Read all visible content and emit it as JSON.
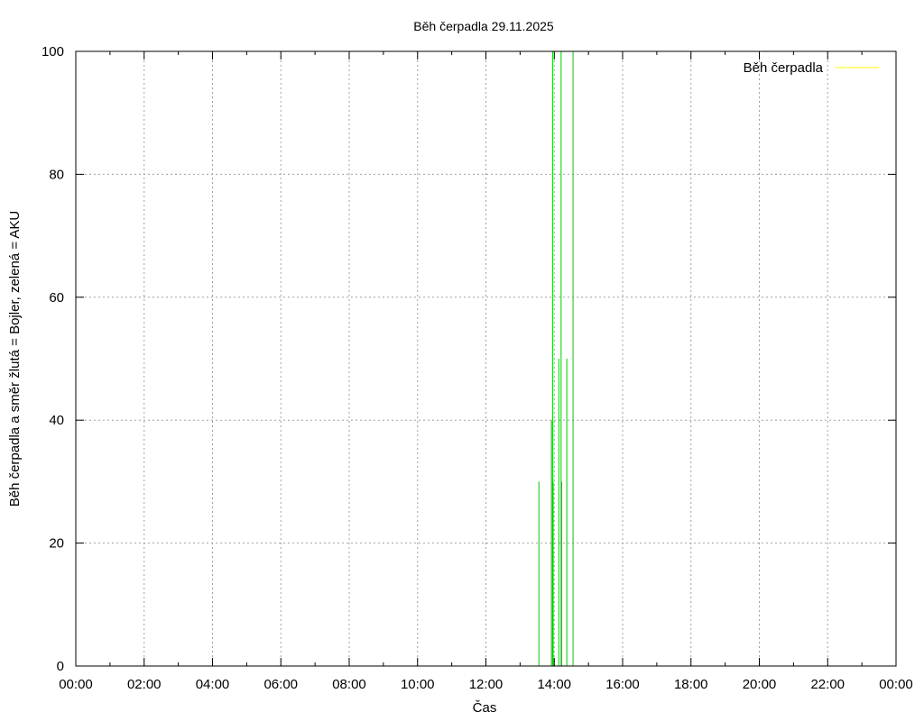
{
  "chart_data": {
    "type": "line",
    "title": "Běh čerpadla 29.11.2025",
    "xlabel": "Čas",
    "ylabel": "Běh čerpadla a směr žlutá = Bojler, zelená = AKU",
    "xlim": [
      0,
      24
    ],
    "ylim": [
      0,
      100
    ],
    "x_ticks": [
      "00:00",
      "02:00",
      "04:00",
      "06:00",
      "08:00",
      "10:00",
      "12:00",
      "14:00",
      "16:00",
      "18:00",
      "20:00",
      "22:00",
      "00:00"
    ],
    "y_ticks": [
      0,
      20,
      40,
      60,
      80,
      100
    ],
    "grid": true,
    "legend": {
      "position": "top-right",
      "entries": [
        {
          "label": "Běh čerpadla",
          "color": "#ffff00"
        }
      ]
    },
    "series": [
      {
        "name": "Běh čerpadla",
        "color": "#ffff00",
        "points": []
      },
      {
        "color": "#00cc00",
        "points": [
          [
            "13:33",
            0
          ],
          [
            "13:33",
            30
          ],
          [
            "13:33",
            0
          ],
          [
            "13:55",
            0
          ],
          [
            "13:55",
            40
          ],
          [
            "13:55",
            0
          ],
          [
            "13:57",
            0
          ],
          [
            "13:57",
            100
          ],
          [
            "13:57",
            0
          ],
          [
            "13:58",
            0
          ],
          [
            "13:58",
            30
          ],
          [
            "13:58",
            0
          ],
          [
            "14:08",
            0
          ],
          [
            "14:08",
            50
          ],
          [
            "14:08",
            0
          ],
          [
            "14:12",
            0
          ],
          [
            "14:12",
            100
          ],
          [
            "14:12",
            0
          ],
          [
            "14:13",
            0
          ],
          [
            "14:13",
            30
          ],
          [
            "14:13",
            0
          ],
          [
            "14:22",
            0
          ],
          [
            "14:22",
            50
          ],
          [
            "14:22",
            0
          ],
          [
            "14:33",
            0
          ],
          [
            "14:33",
            100
          ],
          [
            "14:33",
            0
          ]
        ]
      }
    ]
  }
}
